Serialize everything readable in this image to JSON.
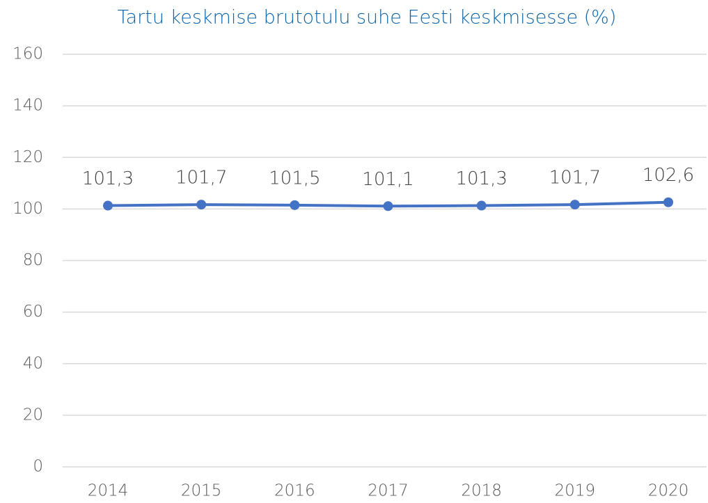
{
  "chart_data": {
    "type": "line",
    "title": "Tartu keskmise brutotulu suhe Eesti keskmisesse (%)",
    "categories": [
      "2014",
      "2015",
      "2016",
      "2017",
      "2018",
      "2019",
      "2020"
    ],
    "values": [
      101.3,
      101.7,
      101.5,
      101.1,
      101.3,
      101.7,
      102.6
    ],
    "value_labels": [
      "101,3",
      "101,7",
      "101,5",
      "101,1",
      "101,3",
      "101,7",
      "102,6"
    ],
    "color": "#4472c4",
    "ylim": [
      0,
      160
    ],
    "yticks": [
      0,
      20,
      40,
      60,
      80,
      100,
      120,
      140,
      160
    ],
    "grid": true
  }
}
